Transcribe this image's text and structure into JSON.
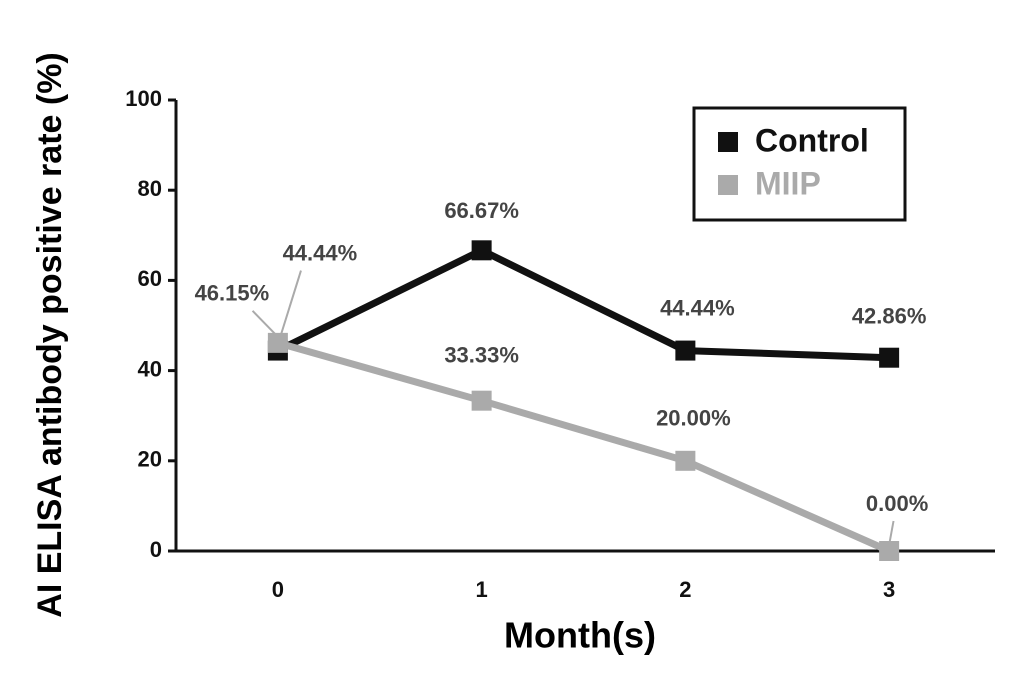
{
  "chart_data": {
    "type": "line",
    "y_label": "AI ELISA antibody positive rate (%)",
    "x_label": "Month(s)",
    "x": [
      0,
      1,
      2,
      3
    ],
    "xlim": [
      -0.5,
      3.5
    ],
    "xticks": [
      0,
      1,
      2,
      3
    ],
    "ylim": [
      0,
      100
    ],
    "yticks": [
      0,
      20,
      40,
      60,
      80,
      100
    ],
    "legend": "upper right",
    "series": [
      {
        "name": "Control",
        "color": "#111111",
        "values": [
          44.44,
          66.67,
          44.44,
          42.86
        ],
        "value_labels": [
          "44.44%",
          "66.67%",
          "44.44%",
          "42.86%"
        ]
      },
      {
        "name": "MIIP",
        "color": "#aaaaaa",
        "values": [
          46.15,
          33.33,
          20.0,
          0.0
        ],
        "value_labels": [
          "46.15%",
          "33.33%",
          "20.00%",
          "0.00%"
        ]
      }
    ]
  }
}
